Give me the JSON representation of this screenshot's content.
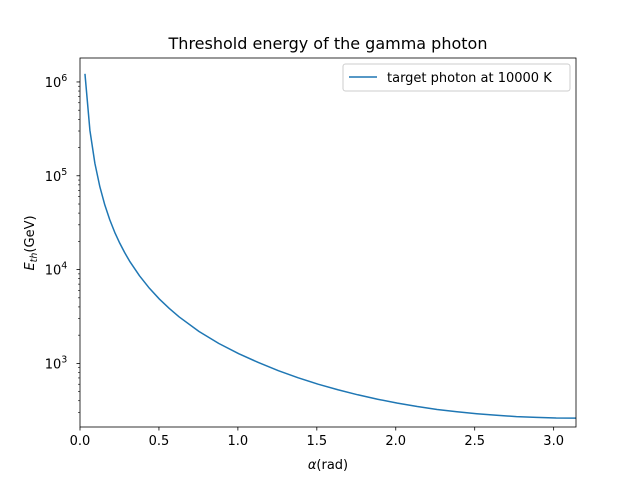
{
  "chart_data": {
    "type": "line",
    "title": "Threshold energy of the gamma photon",
    "xlabel": {
      "italic": "α",
      "plain": "(rad)"
    },
    "ylabel": {
      "base": "E",
      "sub": "th",
      "plain": "(GeV)"
    },
    "xlim": [
      0.0,
      3.1416
    ],
    "ylim": [
      210,
      1800000
    ],
    "yscale": "log",
    "grid": false,
    "legend_position": "upper right",
    "x_ticks": [
      {
        "value": 0.0,
        "label": "0.0"
      },
      {
        "value": 0.5,
        "label": "0.5"
      },
      {
        "value": 1.0,
        "label": "1.0"
      },
      {
        "value": 1.5,
        "label": "1.5"
      },
      {
        "value": 2.0,
        "label": "2.0"
      },
      {
        "value": 2.5,
        "label": "2.5"
      },
      {
        "value": 3.0,
        "label": "3.0"
      }
    ],
    "y_ticks": [
      {
        "value": 1000,
        "base": "10",
        "exp": "3"
      },
      {
        "value": 10000,
        "base": "10",
        "exp": "4"
      },
      {
        "value": 100000,
        "base": "10",
        "exp": "5"
      },
      {
        "value": 1000000,
        "base": "10",
        "exp": "6"
      }
    ],
    "series": [
      {
        "name": "target photon at 10000 K",
        "color": "#1f77b4",
        "x": [
          0.0314,
          0.0628,
          0.0942,
          0.1257,
          0.1571,
          0.1885,
          0.2199,
          0.2513,
          0.2827,
          0.3142,
          0.377,
          0.4398,
          0.5027,
          0.5655,
          0.6283,
          0.754,
          0.8796,
          1.0053,
          1.131,
          1.2566,
          1.3823,
          1.508,
          1.6336,
          1.7593,
          1.885,
          2.0106,
          2.1363,
          2.2619,
          2.3876,
          2.5133,
          2.6389,
          2.7646,
          2.8903,
          3.0159,
          3.1416
        ],
        "y": [
          1220000.0,
          305000.0,
          136000.0,
          76400.0,
          48900.0,
          34000.0,
          25000.0,
          19200.0,
          15200.0,
          12300.0,
          8590.0,
          6320.0,
          4850.0,
          3850.0,
          3130.0,
          2190.0,
          1630.0,
          1270.0,
          1020.0,
          837,
          702,
          601,
          524,
          463,
          415,
          377,
          347,
          323,
          305,
          291,
          280,
          271,
          266,
          262,
          261
        ]
      }
    ]
  }
}
